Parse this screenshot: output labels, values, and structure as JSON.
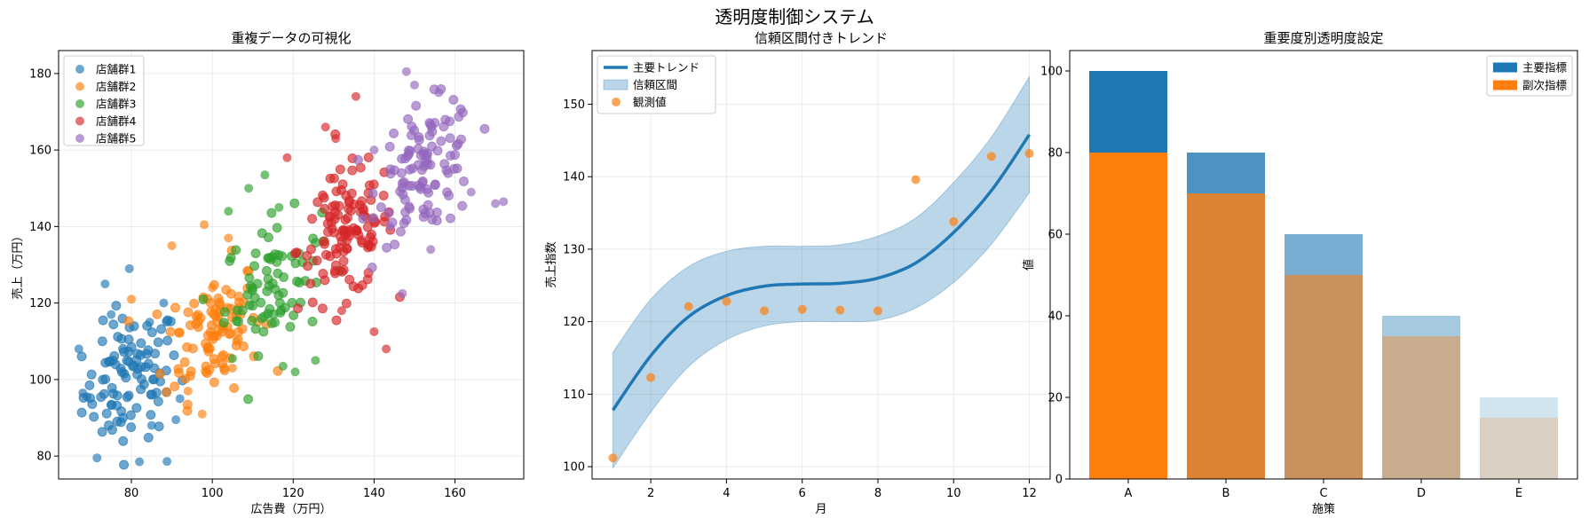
{
  "page": {
    "title": "透明度制御システム"
  },
  "chart_data": [
    {
      "type": "scatter",
      "title": "重複データの可視化",
      "xlabel": "広告費（万円）",
      "ylabel": "売上（万円）",
      "xlim": [
        62,
        177
      ],
      "ylim": [
        74,
        186
      ],
      "xticks": [
        80,
        100,
        120,
        140,
        160
      ],
      "yticks": [
        80,
        100,
        120,
        140,
        160,
        180
      ],
      "grid": true,
      "legend": "top-left",
      "series": [
        {
          "name": "店舗群1",
          "color": "#1f77b4",
          "center": [
            80,
            100
          ],
          "spread": [
            7,
            11
          ],
          "count": 100,
          "points": [
            [
              79.5,
              129
            ],
            [
              73.5,
              125
            ],
            [
              88.8,
              78.6
            ],
            [
              82,
              78.5
            ],
            [
              71.5,
              79.5
            ],
            [
              67,
              108
            ],
            [
              68,
              96.5
            ],
            [
              69,
              95.5
            ],
            [
              85,
              88
            ],
            [
              92,
              95
            ],
            [
              91,
              89.5
            ],
            [
              88,
              120
            ],
            [
              84.5,
              115
            ],
            [
              75,
              117
            ]
          ]
        },
        {
          "name": "店舗群2",
          "color": "#ff7f0e",
          "center": [
            100,
            113
          ],
          "spread": [
            7,
            11
          ],
          "count": 100,
          "points": [
            [
              98,
              140.5
            ],
            [
              104,
              137
            ],
            [
              90,
              135
            ],
            [
              100,
              124
            ],
            [
              94,
              97
            ],
            [
              106,
              110
            ],
            [
              97.5,
              91
            ],
            [
              105,
              103
            ],
            [
              80,
              121
            ]
          ]
        },
        {
          "name": "店舗群3",
          "color": "#2ca02c",
          "center": [
            115,
            125
          ],
          "spread": [
            7,
            11
          ],
          "count": 80,
          "points": [
            [
              113,
              153.5
            ],
            [
              116.5,
              145
            ],
            [
              117.5,
              103.5
            ],
            [
              120.5,
              102
            ],
            [
              125.5,
              105
            ],
            [
              104,
              144
            ],
            [
              109,
              150
            ],
            [
              105,
              105.5
            ]
          ]
        },
        {
          "name": "店舗群4",
          "color": "#d62728",
          "center": [
            133,
            138
          ],
          "spread": [
            7,
            11
          ],
          "count": 120,
          "points": [
            [
              135.5,
              174
            ],
            [
              128,
              166
            ],
            [
              130.5,
              163
            ],
            [
              140,
              112.5
            ],
            [
              118.5,
              158
            ],
            [
              132,
              118
            ],
            [
              143,
              108
            ]
          ]
        },
        {
          "name": "店舗群5",
          "color": "#9467bd",
          "center": [
            153,
            155
          ],
          "spread": [
            7,
            11
          ],
          "count": 110,
          "points": [
            [
              148,
              180.5
            ],
            [
              150,
              177
            ],
            [
              156,
              175
            ],
            [
              170,
              146
            ],
            [
              172,
              146.5
            ],
            [
              140,
              160
            ],
            [
              144,
              140
            ],
            [
              147,
              122.5
            ],
            [
              154,
              134
            ],
            [
              164,
              149
            ]
          ]
        }
      ]
    },
    {
      "type": "line",
      "title": "信頼区間付きトレンド",
      "xlabel": "月",
      "ylabel": "売上指数",
      "xlim": [
        0.45,
        12.55
      ],
      "ylim": [
        98.3,
        157.4
      ],
      "xticks": [
        2,
        4,
        6,
        8,
        10,
        12
      ],
      "yticks": [
        100,
        110,
        120,
        130,
        140,
        150
      ],
      "grid": true,
      "legend": "top-left",
      "series": [
        {
          "name": "主要トレンド",
          "kind": "line",
          "color": "#1f77b4",
          "x": [
            1,
            2,
            3,
            4,
            5,
            6,
            7,
            8,
            9,
            10,
            11,
            12
          ],
          "y": [
            107.8,
            115.3,
            120.7,
            123.6,
            124.9,
            125.2,
            125.3,
            126,
            128.1,
            132.3,
            138.1,
            145.8
          ]
        },
        {
          "name": "信頼区間",
          "kind": "band",
          "color": "#1f77b4",
          "x": [
            1,
            2,
            3,
            4,
            5,
            6,
            7,
            8,
            9,
            10,
            11,
            12
          ],
          "lower": [
            99.8,
            107.5,
            113.8,
            117.5,
            119.4,
            120,
            120,
            120.2,
            121.9,
            125.4,
            130.7,
            137.8
          ],
          "upper": [
            115.8,
            123.1,
            127.6,
            129.7,
            130.4,
            130.4,
            130.6,
            131.8,
            134.3,
            139.2,
            145.5,
            153.8
          ]
        },
        {
          "name": "観測値",
          "kind": "scatter",
          "color": "#ff7f0e",
          "x": [
            1,
            2,
            3,
            4,
            5,
            6,
            7,
            8,
            9,
            10,
            11,
            12
          ],
          "y": [
            101.2,
            112.3,
            122.1,
            122.8,
            121.5,
            121.7,
            121.6,
            121.5,
            139.6,
            133.8,
            142.8,
            143.2
          ]
        }
      ]
    },
    {
      "type": "bar",
      "title": "重要度別透明度設定",
      "xlabel": "施策",
      "ylabel": "値",
      "categories": [
        "A",
        "B",
        "C",
        "D",
        "E"
      ],
      "ylim": [
        0,
        105
      ],
      "yticks": [
        0,
        20,
        40,
        60,
        80,
        100
      ],
      "grid": false,
      "legend": "top-right",
      "opacity": [
        1.0,
        0.8,
        0.6,
        0.4,
        0.2
      ],
      "series": [
        {
          "name": "主要指標",
          "color": "#1f77b4",
          "values": [
            100,
            80,
            60,
            40,
            20
          ]
        },
        {
          "name": "副次指標",
          "color": "#ff7f0e",
          "values": [
            80,
            70,
            50,
            35,
            15
          ]
        }
      ]
    }
  ]
}
